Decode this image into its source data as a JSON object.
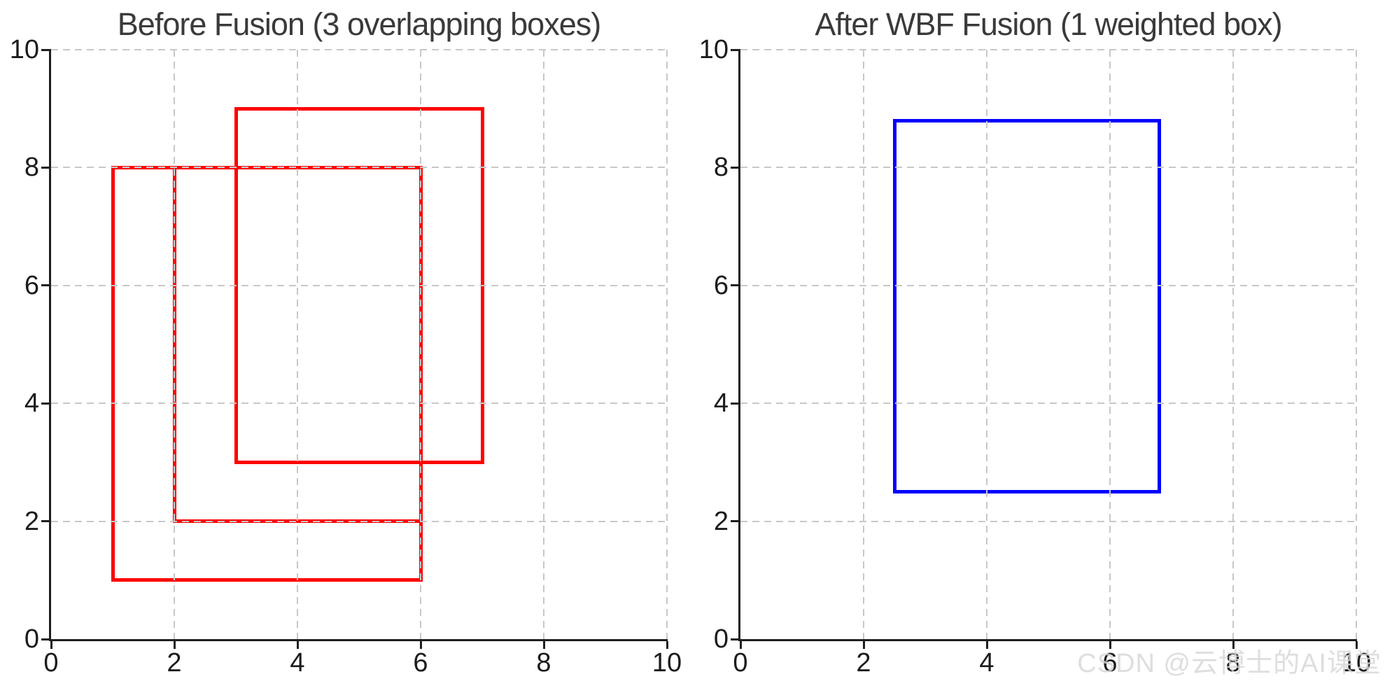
{
  "watermark": {
    "text": "CSDN @云博士的AI课堂"
  },
  "colors": {
    "background": "#ffffff",
    "red_box": "#ff0000",
    "blue_box": "#0000ff",
    "grid": "#c8c8c8",
    "spine": "#1f1f1f",
    "tick_label": "#1c1c1c",
    "title": "#3a3a3a",
    "watermark": "#d7d7d7"
  },
  "chart_data": [
    {
      "type": "boxes",
      "title": "Before Fusion (3 overlapping boxes)",
      "xlabel": "",
      "ylabel": "",
      "xlim": [
        0,
        10
      ],
      "ylim": [
        0,
        10
      ],
      "xticks": [
        "0",
        "2",
        "4",
        "6",
        "8",
        "10"
      ],
      "yticks": [
        "0",
        "2",
        "4",
        "6",
        "8",
        "10"
      ],
      "grid": "dashed, drawn above boxes",
      "legend": "none",
      "box_color": "#ff0000",
      "line_width": 5,
      "boxes": [
        {
          "x1": 1,
          "y1": 1,
          "x2": 6,
          "y2": 8
        },
        {
          "x1": 2,
          "y1": 2,
          "x2": 6,
          "y2": 8
        },
        {
          "x1": 3,
          "y1": 3,
          "x2": 7,
          "y2": 9
        }
      ]
    },
    {
      "type": "boxes",
      "title": "After WBF Fusion (1 weighted box)",
      "xlabel": "",
      "ylabel": "",
      "xlim": [
        0,
        10
      ],
      "ylim": [
        0,
        10
      ],
      "xticks": [
        "0",
        "2",
        "4",
        "6",
        "8",
        "10"
      ],
      "yticks": [
        "0",
        "2",
        "4",
        "6",
        "8",
        "10"
      ],
      "grid": "dashed, drawn above boxes",
      "legend": "none",
      "box_color": "#0000ff",
      "line_width": 5,
      "boxes": [
        {
          "x1": 2.5,
          "y1": 2.5,
          "x2": 6.8,
          "y2": 8.8
        }
      ]
    }
  ]
}
